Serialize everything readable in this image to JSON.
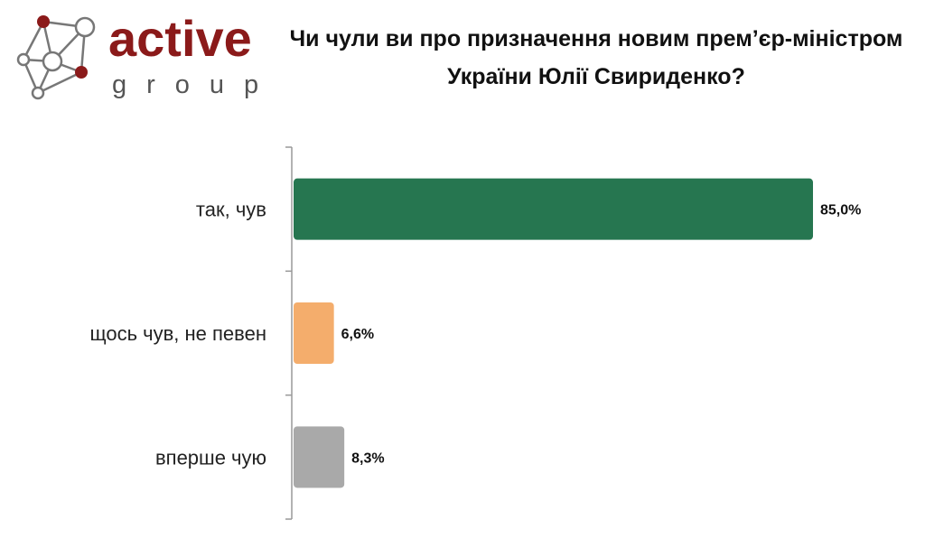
{
  "logo": {
    "brand": "active",
    "tagline": "group",
    "colors": {
      "brand": "#8b1a1a",
      "tagline": "#555555",
      "nodes": "#8b1a1a",
      "lines": "#777777"
    }
  },
  "chart_data": {
    "type": "bar",
    "orientation": "horizontal",
    "title": "Чи чули ви про призначення новим прем’єр-міністром України Юлії Свириденко?",
    "categories": [
      "так, чув",
      "щось чув, не певен",
      "вперше чую"
    ],
    "values": [
      85.0,
      6.6,
      8.3
    ],
    "value_labels": [
      "85,0%",
      "6,6%",
      "8,3%"
    ],
    "colors": [
      "#267650",
      "#f4ad6c",
      "#a9a9a9"
    ],
    "xlim": [
      0,
      85
    ],
    "grid": false,
    "legend": "none"
  }
}
